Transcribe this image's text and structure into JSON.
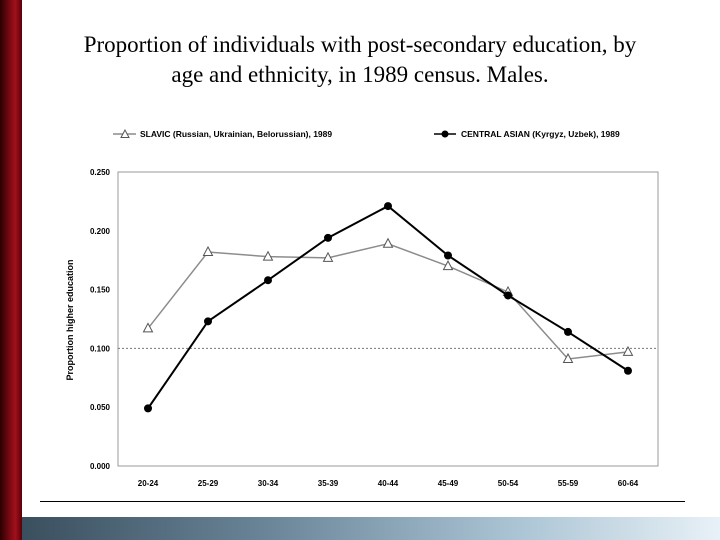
{
  "slide": {
    "title_line1": "Proportion of individuals with post-secondary education, by",
    "title_line2": "age and ethnicity, in 1989 census.  Males."
  },
  "chart_data": {
    "type": "line",
    "categories": [
      "20-24",
      "25-29",
      "30-34",
      "35-39",
      "40-44",
      "45-49",
      "50-54",
      "55-59",
      "60-64"
    ],
    "series": [
      {
        "name": "SLAVIC (Russian, Ukrainian, Belorussian),  1989",
        "marker": "triangle-open",
        "color": "#8c8c8c",
        "values": [
          0.117,
          0.182,
          0.178,
          0.177,
          0.189,
          0.17,
          0.148,
          0.091,
          0.097
        ]
      },
      {
        "name": "CENTRAL ASIAN (Kyrgyz, Uzbek),  1989",
        "marker": "circle-filled",
        "color": "#000000",
        "values": [
          0.049,
          0.123,
          0.158,
          0.194,
          0.221,
          0.179,
          0.145,
          0.114,
          0.081
        ]
      }
    ],
    "ylabel": "Proportion higher education",
    "ylim": [
      0,
      0.25
    ],
    "yticks": [
      "0.000",
      "0.050",
      "0.100",
      "0.150",
      "0.200",
      "0.250"
    ],
    "reference_line": 0.1,
    "legend_position": "top",
    "grid": false
  }
}
